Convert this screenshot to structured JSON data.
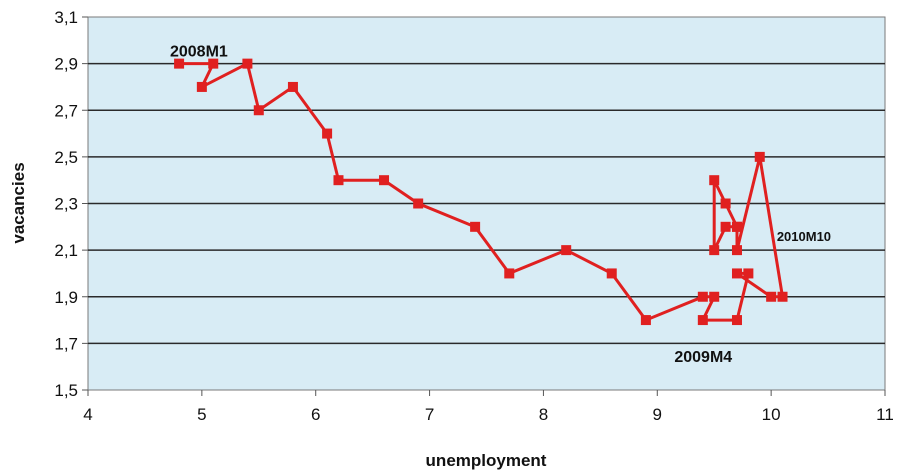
{
  "chart_data": {
    "type": "line",
    "title": "",
    "xlabel": "unemployment",
    "ylabel": "vacancies",
    "xlim": [
      4,
      11
    ],
    "ylim": [
      1.5,
      3.1
    ],
    "x_ticks": [
      "4",
      "5",
      "6",
      "7",
      "8",
      "9",
      "10",
      "11"
    ],
    "y_ticks": [
      "1,5",
      "1,7",
      "1,9",
      "2,1",
      "2,3",
      "2,5",
      "2,7",
      "2,9",
      "3,1"
    ],
    "grid": "horizontal",
    "legend": "none",
    "series": [
      {
        "color": "#e02020",
        "marker": "square",
        "x": [
          4.8,
          5.1,
          5.0,
          5.4,
          5.5,
          5.8,
          6.1,
          6.2,
          6.6,
          6.9,
          7.4,
          7.7,
          8.2,
          8.6,
          8.9,
          9.4,
          9.5,
          9.4,
          9.7,
          9.8,
          9.7,
          10.0,
          10.1,
          9.9,
          9.7,
          9.7,
          9.6,
          9.5,
          9.5,
          9.6,
          9.7
        ],
        "y": [
          2.9,
          2.9,
          2.8,
          2.9,
          2.7,
          2.8,
          2.6,
          2.4,
          2.4,
          2.3,
          2.2,
          2.0,
          2.1,
          2.0,
          1.8,
          1.9,
          1.9,
          1.8,
          1.8,
          2.0,
          2.0,
          1.9,
          1.9,
          2.5,
          2.1,
          2.2,
          2.3,
          2.4,
          2.1,
          2.2,
          2.2
        ]
      }
    ],
    "annotations": [
      {
        "text": "2008M1",
        "x": 4.72,
        "y": 2.93
      },
      {
        "text": "2009M4",
        "x": 9.15,
        "y": 1.62
      },
      {
        "text": "2010M10",
        "x": 10.05,
        "y": 2.14
      }
    ]
  },
  "colors": {
    "plot_background": "#d8ecf5",
    "gridline": "#2a2a2a",
    "series": "#e02020"
  }
}
